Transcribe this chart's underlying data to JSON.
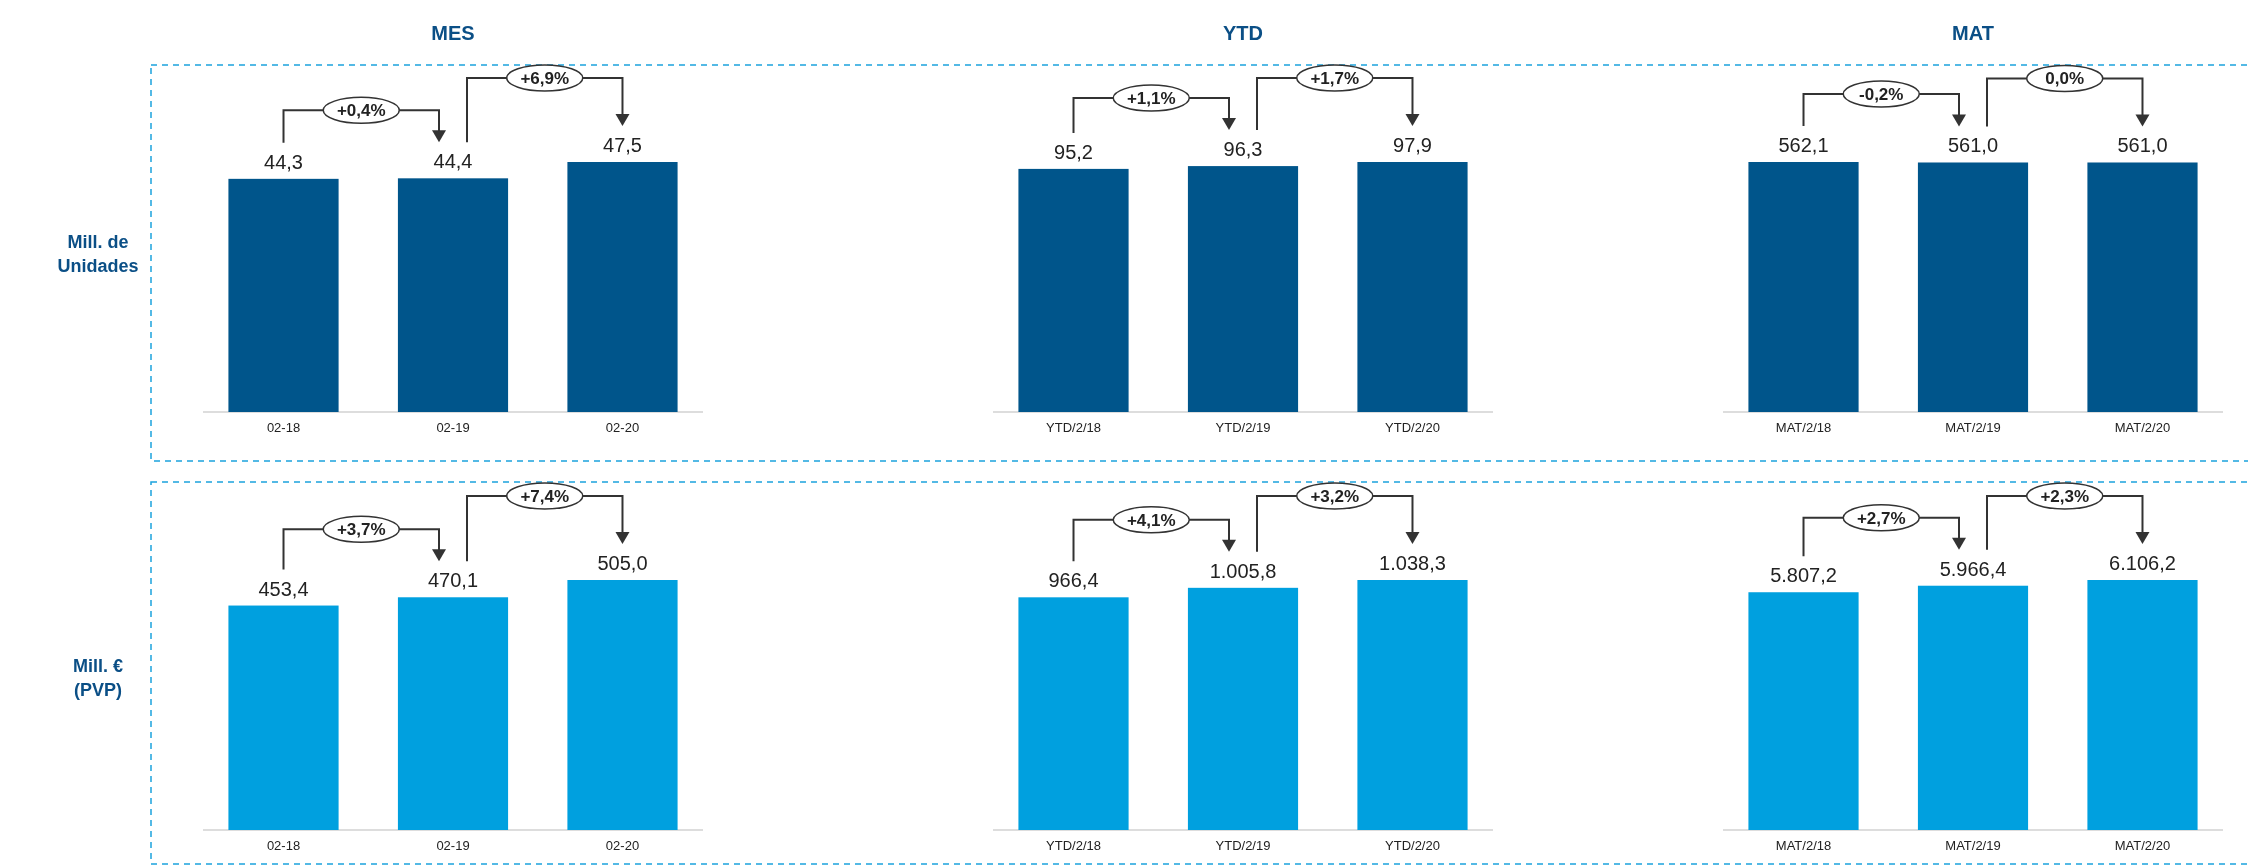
{
  "chart_data": [
    {
      "type": "bar",
      "title": "MES",
      "ylabel": "Mill. de Unidades",
      "categories": [
        "02-18",
        "02-19",
        "02-20"
      ],
      "values": [
        44.3,
        44.4,
        47.5
      ],
      "value_labels": [
        "44,3",
        "44,4",
        "47,5"
      ],
      "color": "#00558b",
      "annotations": [
        "+0,4%",
        "+6,9%"
      ]
    },
    {
      "type": "bar",
      "title": "YTD",
      "categories": [
        "YTD/2/18",
        "YTD/2/19",
        "YTD/2/20"
      ],
      "values": [
        95.2,
        96.3,
        97.9
      ],
      "value_labels": [
        "95,2",
        "96,3",
        "97,9"
      ],
      "color": "#00558b",
      "annotations": [
        "+1,1%",
        "+1,7%"
      ]
    },
    {
      "type": "bar",
      "title": "MAT",
      "categories": [
        "MAT/2/18",
        "MAT/2/19",
        "MAT/2/20"
      ],
      "values": [
        562.1,
        561.0,
        561.0
      ],
      "value_labels": [
        "562,1",
        "561,0",
        "561,0"
      ],
      "color": "#00558b",
      "annotations": [
        "-0,2%",
        "0,0%"
      ]
    },
    {
      "type": "bar",
      "ylabel": "Mill. € (PVP)",
      "categories": [
        "02-18",
        "02-19",
        "02-20"
      ],
      "values": [
        453.4,
        470.1,
        505.0
      ],
      "value_labels": [
        "453,4",
        "470,1",
        "505,0"
      ],
      "color": "#00a0df",
      "annotations": [
        "+3,7%",
        "+7,4%"
      ]
    },
    {
      "type": "bar",
      "categories": [
        "YTD/2/18",
        "YTD/2/19",
        "YTD/2/20"
      ],
      "values": [
        966.4,
        1005.8,
        1038.3
      ],
      "value_labels": [
        "966,4",
        "1.005,8",
        "1.038,3"
      ],
      "color": "#00a0df",
      "annotations": [
        "+4,1%",
        "+3,2%"
      ]
    },
    {
      "type": "bar",
      "categories": [
        "MAT/2/18",
        "MAT/2/19",
        "MAT/2/20"
      ],
      "values": [
        5807.2,
        5966.4,
        6106.2
      ],
      "value_labels": [
        "5.807,2",
        "5.966,4",
        "6.106,2"
      ],
      "color": "#00a0df",
      "annotations": [
        "+2,7%",
        "+2,3%"
      ]
    }
  ]
}
